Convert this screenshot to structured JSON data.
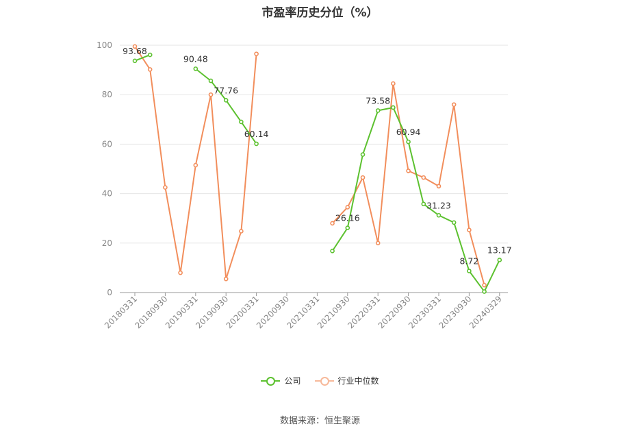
{
  "chart_data": {
    "type": "line",
    "title": "市盈率历史分位（%）",
    "x": [
      "20180331",
      "20180630",
      "20180930",
      "20181231",
      "20190331",
      "20190630",
      "20190930",
      "20191231",
      "20200331",
      "20200630",
      "20200930",
      "20201231",
      "20210331",
      "20210630",
      "20210930",
      "20211231",
      "20220331",
      "20220630",
      "20220930",
      "20221231",
      "20230331",
      "20230630",
      "20230930",
      "20231231",
      "20240329"
    ],
    "xticks": [
      "20180331",
      "20180930",
      "20190331",
      "20190930",
      "20200331",
      "20200930",
      "20210331",
      "20210930",
      "20220331",
      "20220930",
      "20230331",
      "20230930",
      "20240329"
    ],
    "ylim": [
      0,
      100
    ],
    "yticks": [
      0,
      20,
      40,
      60,
      80,
      100
    ],
    "grid": true,
    "legend_position": "bottom",
    "series": [
      {
        "name": "公司",
        "color": "#5cc12f",
        "values": [
          93.68,
          96.1,
          null,
          null,
          90.48,
          85.6,
          77.76,
          69.0,
          60.14,
          null,
          null,
          null,
          null,
          16.8,
          26.16,
          55.8,
          73.58,
          74.8,
          60.94,
          35.8,
          31.23,
          28.3,
          8.72,
          0.4,
          13.17
        ],
        "labels": {
          "0": "93.68",
          "4": "90.48",
          "6": "77.76",
          "8": "60.14",
          "14": "26.16",
          "16": "73.58",
          "18": "60.94",
          "20": "31.23",
          "22": "8.72",
          "24": "13.17"
        }
      },
      {
        "name": "行业中位数",
        "color": "#f28e5c",
        "values": [
          99.5,
          90.2,
          42.5,
          8.0,
          51.5,
          80.0,
          5.5,
          24.8,
          96.5,
          null,
          null,
          null,
          null,
          28.0,
          34.5,
          46.5,
          20.0,
          84.5,
          49.2,
          46.5,
          43.0,
          76.0,
          25.3,
          3.0,
          null
        ]
      }
    ]
  },
  "legend": [
    {
      "label": "公司",
      "color": "#5cc12f"
    },
    {
      "label": "行业中位数",
      "color": "#f28e5c"
    }
  ],
  "source": "数据来源：恒生聚源"
}
